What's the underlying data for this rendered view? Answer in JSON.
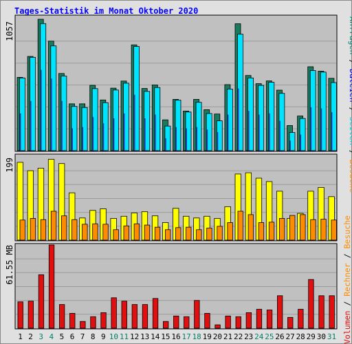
{
  "title": "Tages-Statistik im Monat Oktober 2020",
  "colors": {
    "background": "#e0e0e0",
    "plot_bg": "#c0c0c0",
    "title": "#0000ff",
    "anfragen": "#1a7a5e",
    "dateien": "#00e5ff",
    "seiten": "#2840c8",
    "besuche": "#ffff00",
    "rechner": "#ff8c00",
    "volumen": "#e01010",
    "weekend_label": "#00806b",
    "weekday_label": "#000000"
  },
  "right_legend": {
    "top": [
      {
        "text": "Anfragen",
        "color": "#00806b"
      },
      {
        "text": " / ",
        "color": "#000000"
      },
      {
        "text": "Dateien",
        "color": "#0000ff"
      },
      {
        "text": " / ",
        "color": "#000000"
      },
      {
        "text": "Seiten",
        "color": "#00ccdd"
      },
      {
        "text": " / ",
        "color": "#000000"
      },
      {
        "text": "Besuche",
        "color": "#ff8c00"
      }
    ],
    "bottom": [
      {
        "text": "Volumen",
        "color": "#e01010"
      },
      {
        "text": " / ",
        "color": "#000000"
      },
      {
        "text": "Rechner",
        "color": "#ff8c00"
      },
      {
        "text": " / ",
        "color": "#000000"
      },
      {
        "text": "Besuche",
        "color": "#ff8c00"
      }
    ]
  },
  "chart_data": [
    {
      "type": "bar",
      "panel": "anfragen-dateien-seiten",
      "max_label": "1057",
      "ylim": [
        0,
        1057
      ],
      "series": [
        {
          "name": "Anfragen",
          "values": [
            590,
            758,
            1057,
            881,
            621,
            377,
            377,
            526,
            408,
            503,
            560,
            851,
            500,
            529,
            248,
            413,
            319,
            413,
            330,
            295,
            531,
            1021,
            605,
            539,
            561,
            487,
            202,
            279,
            675,
            640,
            582
          ]
        },
        {
          "name": "Dateien",
          "values": [
            585,
            751,
            1022,
            843,
            600,
            356,
            347,
            499,
            386,
            488,
            543,
            838,
            477,
            508,
            198,
            407,
            311,
            389,
            299,
            240,
            496,
            937,
            585,
            525,
            550,
            461,
            146,
            259,
            644,
            632,
            548
          ]
        },
        {
          "name": "Seiten",
          "values": [
            300,
            400,
            650,
            580,
            400,
            180,
            190,
            270,
            220,
            260,
            300,
            450,
            260,
            290,
            100,
            190,
            180,
            190,
            170,
            150,
            290,
            500,
            320,
            290,
            300,
            240,
            80,
            130,
            350,
            340,
            310
          ]
        }
      ]
    },
    {
      "type": "bar",
      "panel": "besuche-rechner",
      "max_label": "199",
      "ylim": [
        0,
        199
      ],
      "series": [
        {
          "name": "Besuche",
          "values": [
            186,
            166,
            172,
            193,
            183,
            113,
            53,
            71,
            75,
            52,
            57,
            65,
            68,
            58,
            42,
            76,
            57,
            53,
            57,
            52,
            80,
            158,
            161,
            148,
            140,
            117,
            52,
            64,
            117,
            126,
            104
          ]
        },
        {
          "name": "Rechner",
          "values": [
            48,
            52,
            49,
            69,
            58,
            49,
            38,
            39,
            38,
            25,
            34,
            39,
            36,
            31,
            25,
            30,
            31,
            25,
            29,
            33,
            42,
            69,
            61,
            42,
            43,
            52,
            59,
            61,
            49,
            50,
            48
          ]
        }
      ]
    },
    {
      "type": "bar",
      "panel": "volumen",
      "max_label": "61.55 MB",
      "ylim": [
        0,
        61.55
      ],
      "series": [
        {
          "name": "Volumen",
          "values": [
            19.5,
            20,
            39.5,
            61.55,
            17.5,
            11,
            5,
            8.5,
            11.5,
            22.5,
            20,
            17.5,
            17.5,
            22,
            5,
            9,
            8.5,
            20.5,
            11,
            2.5,
            9,
            8.5,
            11.5,
            14,
            13.5,
            24,
            8,
            14,
            36,
            24,
            24
          ]
        }
      ]
    }
  ],
  "x_axis": {
    "labels": [
      "1",
      "2",
      "3",
      "4",
      "5",
      "6",
      "7",
      "8",
      "9",
      "10",
      "11",
      "12",
      "13",
      "14",
      "15",
      "16",
      "17",
      "18",
      "19",
      "20",
      "21",
      "22",
      "23",
      "24",
      "25",
      "26",
      "27",
      "28",
      "29",
      "30",
      "31"
    ],
    "weekend_days": [
      3,
      4,
      10,
      11,
      17,
      18,
      24,
      25,
      31
    ]
  }
}
